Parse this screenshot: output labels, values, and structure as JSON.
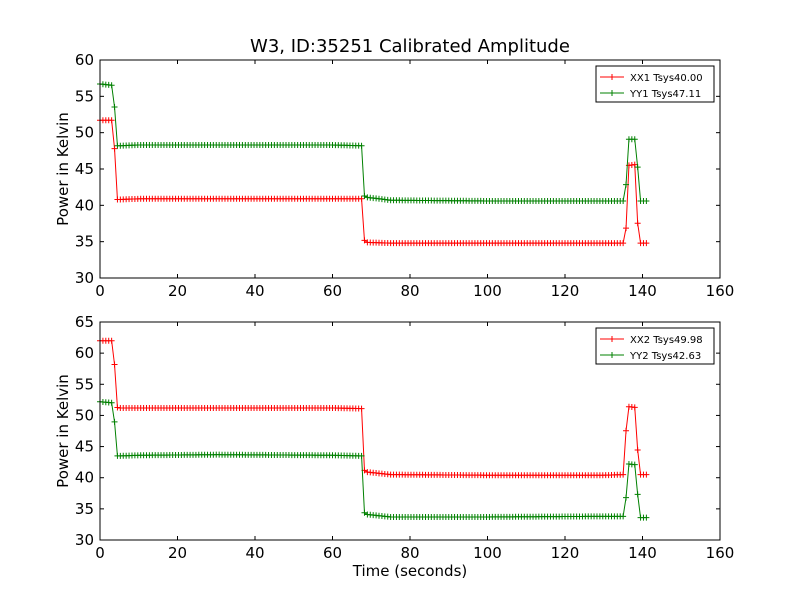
{
  "chart_data": [
    {
      "type": "line",
      "title": "W3, ID:35251 Calibrated Amplitude",
      "xlabel": "",
      "ylabel": "Power in Kelvin",
      "xlim": [
        0,
        160
      ],
      "ylim": [
        30,
        60
      ],
      "xticks": [
        0,
        20,
        40,
        60,
        80,
        100,
        120,
        140,
        160
      ],
      "yticks": [
        30,
        35,
        40,
        45,
        50,
        55,
        60
      ],
      "legend_position": "top-right",
      "grid": false,
      "series": [
        {
          "name": "XX1 Tsys40.00",
          "color": "#ff0000",
          "x": [
            0,
            3.5,
            4.2,
            5,
            10,
            30,
            60,
            67.5,
            68.2,
            69,
            75,
            100,
            130,
            135,
            135.8,
            136.5,
            138,
            138.8,
            139.5,
            141
          ],
          "y": [
            51.7,
            51.7,
            40.8,
            40.8,
            40.9,
            40.9,
            40.9,
            40.9,
            35.2,
            34.9,
            34.8,
            34.8,
            34.8,
            34.8,
            37,
            45.5,
            45.6,
            37,
            34.8,
            34.8
          ]
        },
        {
          "name": "YY1 Tsys47.11",
          "color": "#008000",
          "x": [
            0,
            3.5,
            4.2,
            5,
            10,
            30,
            60,
            67.5,
            68.2,
            69,
            75,
            100,
            130,
            135,
            135.8,
            136.5,
            138,
            138.8,
            139.5,
            141
          ],
          "y": [
            56.7,
            56.5,
            48.2,
            48.2,
            48.3,
            48.3,
            48.3,
            48.2,
            41.3,
            41.1,
            40.7,
            40.6,
            40.6,
            40.6,
            43,
            49.1,
            49.1,
            45,
            40.6,
            40.6
          ]
        }
      ]
    },
    {
      "type": "line",
      "title": "",
      "xlabel": "Time (seconds)",
      "ylabel": "Power in Kelvin",
      "xlim": [
        0,
        160
      ],
      "ylim": [
        30,
        65
      ],
      "xticks": [
        0,
        20,
        40,
        60,
        80,
        100,
        120,
        140,
        160
      ],
      "yticks": [
        30,
        35,
        40,
        45,
        50,
        55,
        60,
        65
      ],
      "legend_position": "top-right",
      "grid": false,
      "series": [
        {
          "name": "XX2 Tsys49.98",
          "color": "#ff0000",
          "x": [
            0,
            3.5,
            4.2,
            5,
            10,
            30,
            60,
            67.5,
            68.2,
            69,
            75,
            100,
            130,
            135,
            135.8,
            136.5,
            138,
            138.8,
            139.5,
            141
          ],
          "y": [
            62,
            62,
            51.3,
            51.2,
            51.2,
            51.2,
            51.2,
            51.1,
            41.2,
            40.9,
            40.5,
            40.4,
            40.4,
            40.5,
            48,
            51.4,
            51.3,
            44,
            40.5,
            40.5
          ]
        },
        {
          "name": "YY2 Tsys42.63",
          "color": "#008000",
          "x": [
            0,
            3.5,
            4.2,
            5,
            10,
            30,
            60,
            67.5,
            68.2,
            69,
            75,
            100,
            130,
            135,
            135.8,
            136.5,
            138,
            138.8,
            139.5,
            141
          ],
          "y": [
            52.2,
            52,
            43.5,
            43.5,
            43.6,
            43.7,
            43.6,
            43.5,
            34.4,
            34.1,
            33.7,
            33.7,
            33.8,
            33.8,
            37,
            42.2,
            42.1,
            37,
            33.6,
            33.6
          ]
        }
      ]
    }
  ]
}
